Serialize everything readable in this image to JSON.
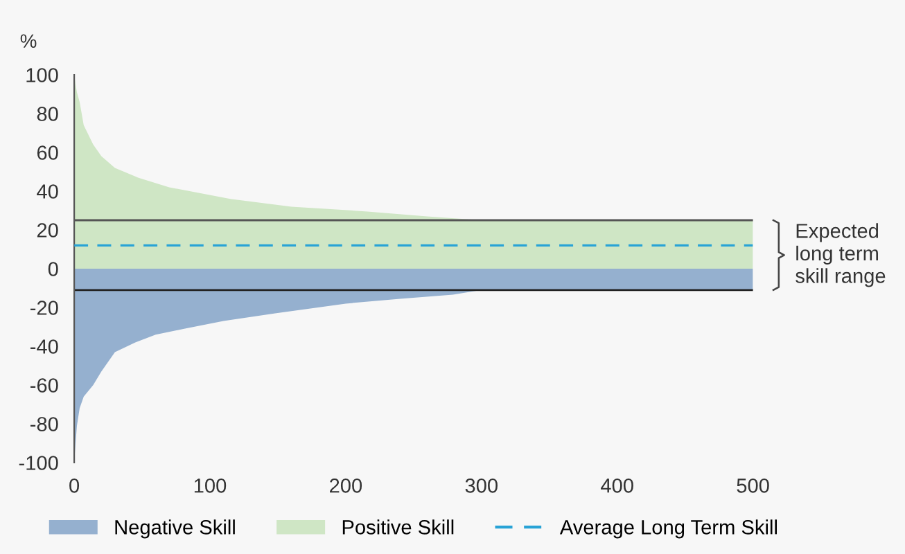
{
  "chart_data": {
    "type": "area",
    "ylabel": "%",
    "xlim": [
      0,
      500
    ],
    "xticks": [
      0,
      100,
      200,
      300,
      400,
      500
    ],
    "ylim": [
      -100,
      100
    ],
    "yticks": [
      -100,
      -80,
      -60,
      -40,
      -20,
      0,
      20,
      40,
      60,
      80,
      100
    ],
    "grid": false,
    "legend": "bottom",
    "series": [
      {
        "name": "Negative Skill",
        "color": "#95b0cf",
        "x": [
          0,
          1,
          2,
          4,
          7,
          14,
          20,
          30,
          45,
          60,
          81,
          110,
          148,
          200,
          240,
          279,
          300,
          500
        ],
        "values": [
          -100,
          -90,
          -81,
          -72,
          -66,
          -60,
          -53,
          -43,
          -38,
          -34,
          -31,
          -27,
          -23,
          -18,
          -15.5,
          -13.4,
          -11,
          -11
        ]
      },
      {
        "name": "Positive Skill",
        "color": "#cfe6c5",
        "x": [
          0,
          1,
          2,
          4,
          7,
          14,
          20,
          30,
          47,
          70,
          115,
          160,
          216,
          260,
          300,
          500
        ],
        "values": [
          100,
          95,
          91,
          86,
          74,
          64,
          58,
          52,
          47,
          42,
          36,
          32,
          29.5,
          27,
          25,
          25
        ]
      },
      {
        "name": "Average Long Term Skill",
        "type": "line",
        "color": "#29a3d6",
        "line_style": "dashed",
        "x": [
          0,
          500
        ],
        "values": [
          12,
          12
        ]
      }
    ],
    "ref_lines": [
      {
        "axis": "y",
        "value": 25,
        "color": "#555555"
      },
      {
        "axis": "y",
        "value": -11,
        "color": "#222222"
      }
    ],
    "annotations": [
      "Expected\nlong term\nskill range"
    ]
  }
}
